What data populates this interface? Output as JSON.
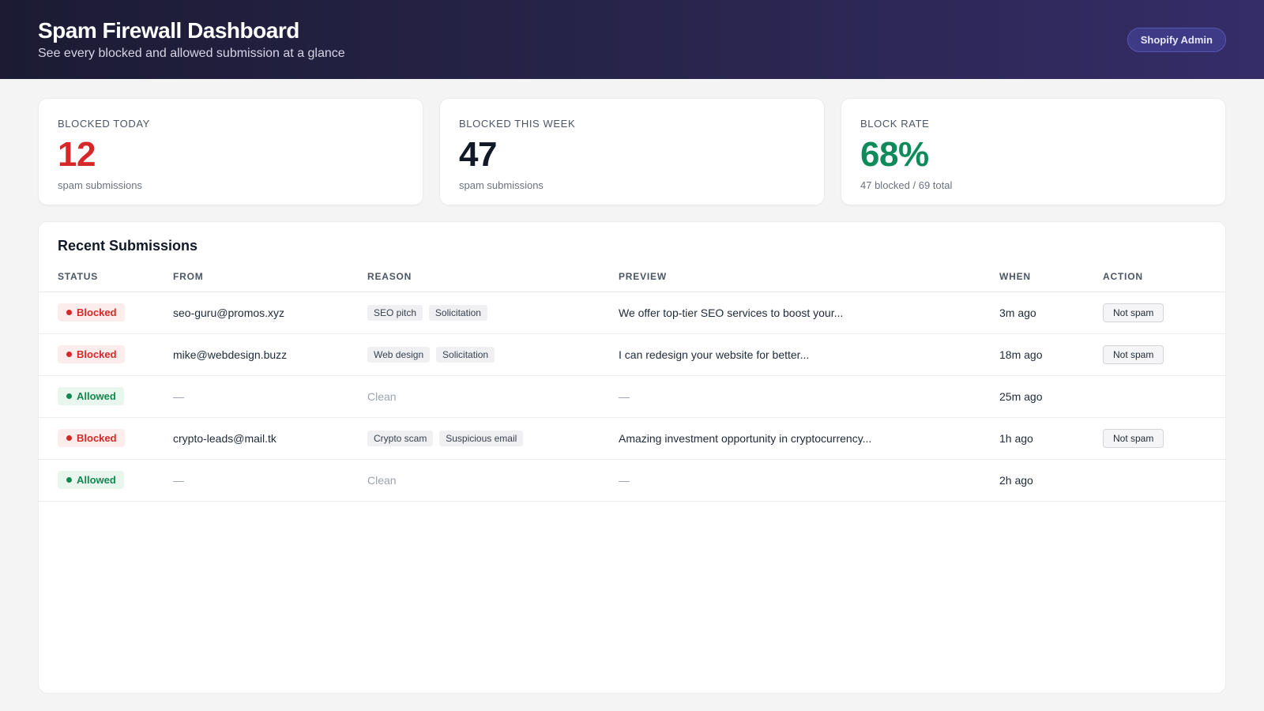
{
  "header": {
    "title": "Spam Firewall Dashboard",
    "subtitle": "See every blocked and allowed submission at a glance",
    "admin_button": "Shopify Admin"
  },
  "stats": [
    {
      "label": "BLOCKED TODAY",
      "value": "12",
      "sub": "spam submissions",
      "color": "#d62828"
    },
    {
      "label": "BLOCKED THIS WEEK",
      "value": "47",
      "sub": "spam submissions",
      "color": "#111827"
    },
    {
      "label": "BLOCK RATE",
      "value": "68%",
      "sub": "47 blocked / 69 total",
      "color": "#0f8a5a"
    }
  ],
  "submissions": {
    "title": "Recent Submissions",
    "columns": [
      "STATUS",
      "FROM",
      "REASON",
      "PREVIEW",
      "WHEN",
      "ACTION"
    ],
    "rows": [
      {
        "status": "Blocked",
        "from": "seo-guru@promos.xyz",
        "reasons": [
          "SEO pitch",
          "Solicitation"
        ],
        "preview": "We offer top-tier SEO services to boost your...",
        "when": "3m ago",
        "action": "Not spam"
      },
      {
        "status": "Blocked",
        "from": "mike@webdesign.buzz",
        "reasons": [
          "Web design",
          "Solicitation"
        ],
        "preview": "I can redesign your website for better...",
        "when": "18m ago",
        "action": "Not spam"
      },
      {
        "status": "Allowed",
        "from": "—",
        "reason_text": "Clean",
        "preview": "—",
        "when": "25m ago"
      },
      {
        "status": "Blocked",
        "from": "crypto-leads@mail.tk",
        "reasons": [
          "Crypto scam",
          "Suspicious email"
        ],
        "preview": "Amazing investment opportunity in cryptocurrency...",
        "when": "1h ago",
        "action": "Not spam"
      },
      {
        "status": "Allowed",
        "from": "—",
        "reason_text": "Clean",
        "preview": "—",
        "when": "2h ago"
      }
    ]
  }
}
